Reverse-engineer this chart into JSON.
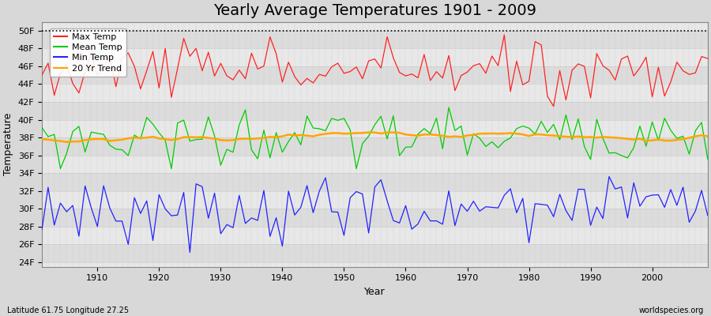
{
  "title": "Yearly Average Temperatures 1901 - 2009",
  "ylabel": "Temperature",
  "xlabel": "Year",
  "footnote_left": "Latitude 61.75 Longitude 27.25",
  "footnote_right": "worldspecies.org",
  "legend_labels": [
    "Max Temp",
    "Mean Temp",
    "Min Temp",
    "20 Yr Trend"
  ],
  "legend_colors": [
    "#ff2222",
    "#00cc00",
    "#2222ff",
    "#ffa500"
  ],
  "ylim": [
    23.5,
    51.0
  ],
  "yticks": [
    24,
    26,
    28,
    30,
    32,
    34,
    36,
    38,
    40,
    42,
    44,
    46,
    48,
    50
  ],
  "ytick_labels": [
    "24F",
    "26F",
    "28F",
    "30F",
    "32F",
    "34F",
    "36F",
    "38F",
    "40F",
    "42F",
    "44F",
    "46F",
    "48F",
    "50F"
  ],
  "dotted_line_y": 50,
  "fig_bg_color": "#d8d8d8",
  "plot_bg_color": "#e8e8e8",
  "stripe_colors": [
    "#dcdcdc",
    "#e8e8e8"
  ],
  "grid_color": "#c8c8c8",
  "title_fontsize": 14,
  "axis_fontsize": 9,
  "tick_fontsize": 8,
  "max_temp_seed": 10,
  "mean_temp_seed": 20,
  "min_temp_seed": 30
}
